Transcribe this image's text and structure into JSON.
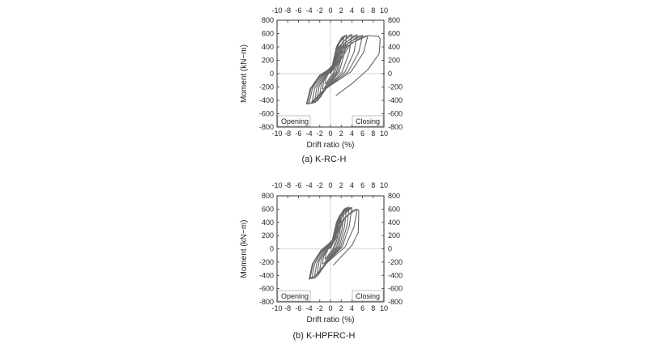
{
  "chart_data": [
    {
      "type": "line",
      "caption": "(a)  K-RC-H",
      "xlabel": "Drift ratio (%)",
      "ylabel": "Moment (kN−m)",
      "xlim": [
        -10,
        10
      ],
      "ylim": [
        -800,
        800
      ],
      "xticks": [
        -10,
        -8,
        -6,
        -4,
        -2,
        0,
        2,
        4,
        6,
        8,
        10
      ],
      "yticks": [
        800,
        600,
        400,
        200,
        0,
        -200,
        -400,
        -600,
        -800
      ],
      "annotations": {
        "left": "Opening",
        "right": "Closing"
      },
      "grid": "zero-lines",
      "loops": [
        {
          "xp": 1.0,
          "yp": 220,
          "xn": -1.0,
          "yn": -150
        },
        {
          "xp": 1.5,
          "yp": 320,
          "xn": -1.5,
          "yn": -230
        },
        {
          "xp": 2.0,
          "yp": 420,
          "xn": -2.0,
          "yn": -310
        },
        {
          "xp": 2.5,
          "yp": 560,
          "xn": -2.5,
          "yn": -380
        },
        {
          "xp": 3.0,
          "yp": 580,
          "xn": -3.0,
          "yn": -420
        },
        {
          "xp": 4.0,
          "yp": 585,
          "xn": -3.5,
          "yn": -445
        },
        {
          "xp": 5.0,
          "yp": 580,
          "xn": -4.0,
          "yn": -450
        },
        {
          "xp": 6.0,
          "yp": 575,
          "xn": -4.3,
          "yn": -455
        },
        {
          "xp": 7.0,
          "yp": 570,
          "xn": -4.5,
          "yn": -455
        }
      ],
      "final_branch": [
        [
          7.0,
          570
        ],
        [
          9.0,
          560
        ],
        [
          9.3,
          520
        ],
        [
          9.1,
          300
        ],
        [
          7.0,
          60
        ],
        [
          4.0,
          -150
        ],
        [
          1.0,
          -330
        ]
      ]
    },
    {
      "type": "line",
      "caption": "(b)  K-HPFRC-H",
      "xlabel": "Drift ratio (%)",
      "ylabel": "Moment (kN−m)",
      "xlim": [
        -10,
        10
      ],
      "ylim": [
        -800,
        800
      ],
      "xticks": [
        -10,
        -8,
        -6,
        -4,
        -2,
        0,
        2,
        4,
        6,
        8,
        10
      ],
      "yticks": [
        800,
        600,
        400,
        200,
        0,
        -200,
        -400,
        -600,
        -800
      ],
      "annotations": {
        "left": "Opening",
        "right": "Closing"
      },
      "grid": "zero-lines",
      "loops": [
        {
          "xp": 1.0,
          "yp": 230,
          "xn": -1.0,
          "yn": -150
        },
        {
          "xp": 1.5,
          "yp": 330,
          "xn": -1.5,
          "yn": -230
        },
        {
          "xp": 2.0,
          "yp": 440,
          "xn": -2.0,
          "yn": -310
        },
        {
          "xp": 2.5,
          "yp": 560,
          "xn": -2.5,
          "yn": -370
        },
        {
          "xp": 3.0,
          "yp": 620,
          "xn": -3.0,
          "yn": -420
        },
        {
          "xp": 3.5,
          "yp": 630,
          "xn": -3.5,
          "yn": -450
        },
        {
          "xp": 4.0,
          "yp": 625,
          "xn": -4.0,
          "yn": -455
        },
        {
          "xp": 5.0,
          "yp": 600,
          "xn": -3.8,
          "yn": -440
        }
      ],
      "final_branch": [
        [
          5.0,
          600
        ],
        [
          5.3,
          580
        ],
        [
          5.2,
          250
        ],
        [
          4.0,
          50
        ],
        [
          2.0,
          -120
        ],
        [
          0.5,
          -250
        ]
      ]
    }
  ]
}
